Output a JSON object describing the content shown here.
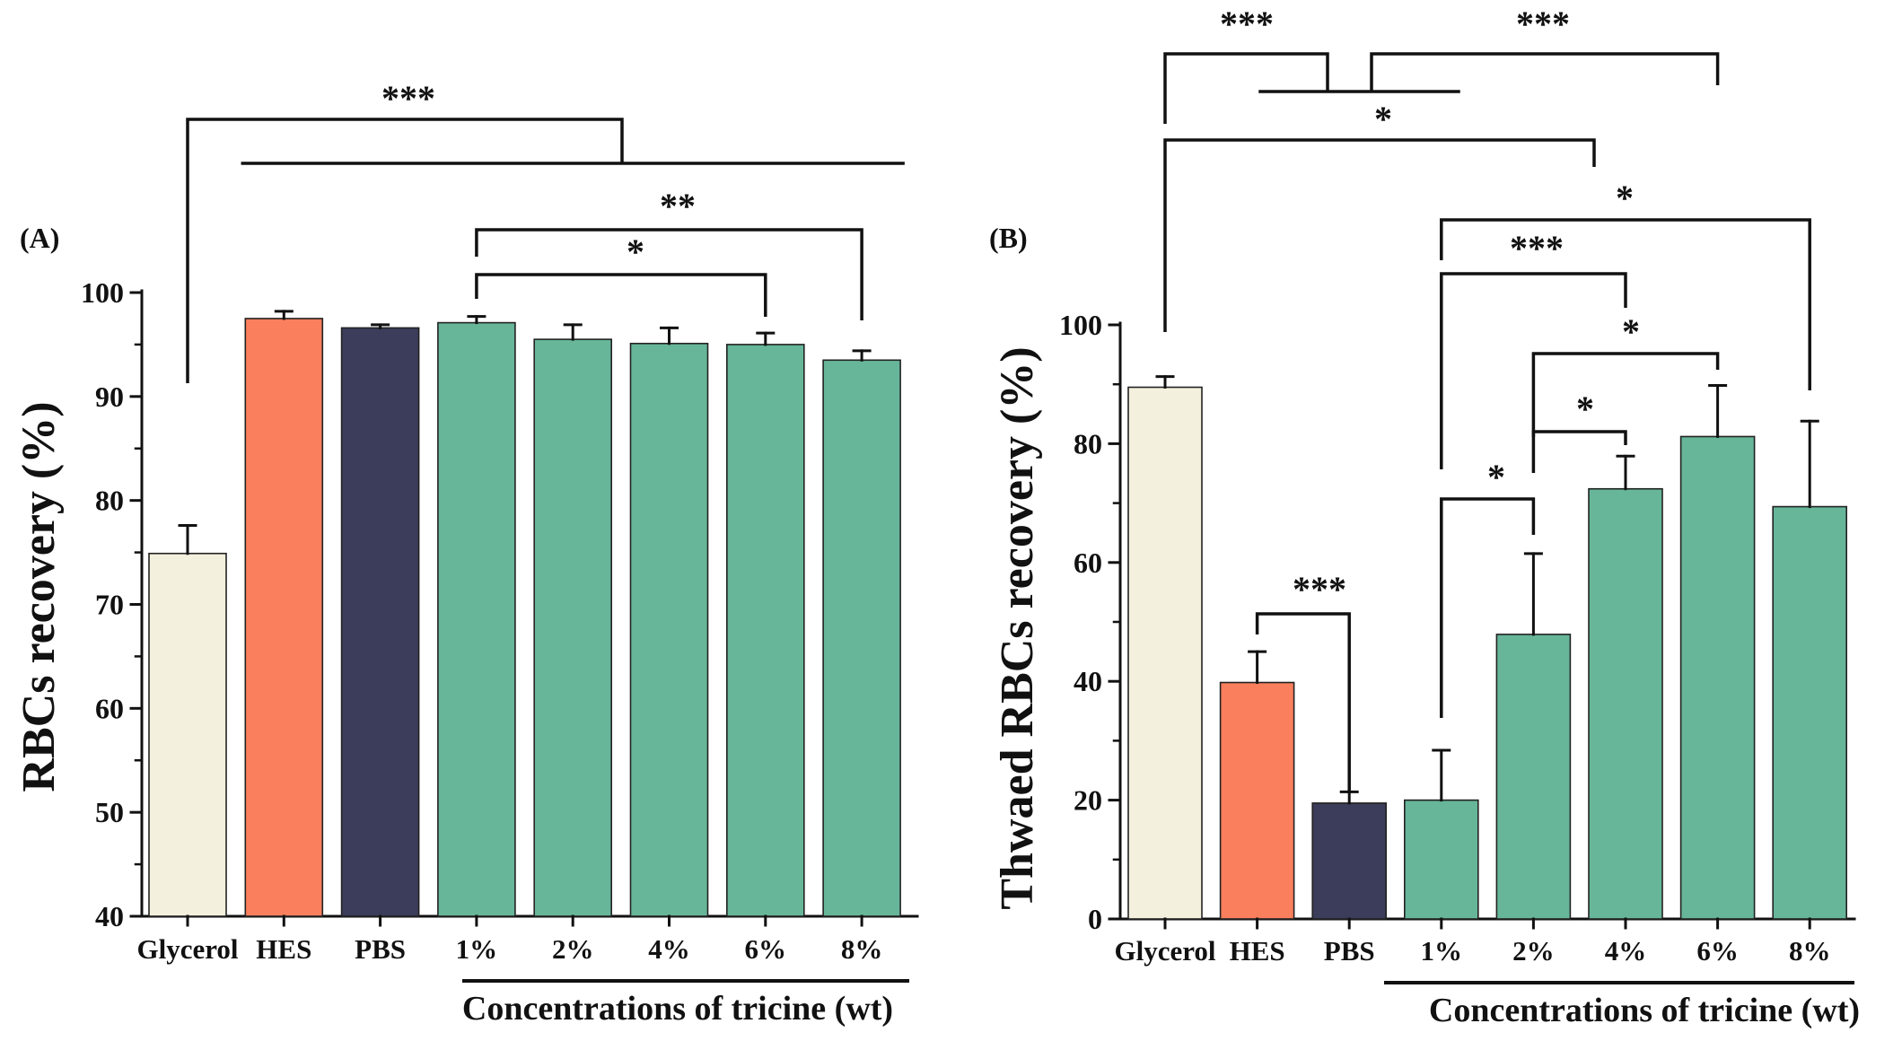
{
  "figure_title": "",
  "chart_data": [
    {
      "type": "bar",
      "panel_label": "(A)",
      "categories": [
        "Glycerol",
        "HES",
        "PBS",
        "1%",
        "2%",
        "4%",
        "6%",
        "8%"
      ],
      "values": [
        74.9,
        97.5,
        96.6,
        97.1,
        95.5,
        95.1,
        95.0,
        93.5
      ],
      "errors": [
        2.7,
        0.7,
        0.3,
        0.6,
        1.4,
        1.5,
        1.1,
        0.9
      ],
      "colors": [
        "#f3f0dd",
        "#fa7f5d",
        "#3b3d5a",
        "#67b69a",
        "#67b69a",
        "#67b69a",
        "#67b69a",
        "#67b69a"
      ],
      "ylabel": "RBCs recovery (%)",
      "xlabel": "Concentrations of tricine (wt)",
      "ylim": [
        40,
        100
      ],
      "yticks": [
        40,
        50,
        60,
        70,
        80,
        90,
        100
      ],
      "yticks_text": [
        "40",
        "50",
        "60",
        "70",
        "80",
        "90",
        "100"
      ],
      "grid": false,
      "significance": [
        {
          "from": 0,
          "to_range": [
            1,
            7
          ],
          "label": "***"
        },
        {
          "from": 3,
          "to": 7,
          "label": "**"
        },
        {
          "from": 3,
          "to": 6,
          "label": "*"
        }
      ]
    },
    {
      "type": "bar",
      "panel_label": "(B)",
      "categories": [
        "Glycerol",
        "HES",
        "PBS",
        "1%",
        "2%",
        "4%",
        "6%",
        "8%"
      ],
      "values": [
        89.5,
        39.8,
        19.5,
        20.0,
        47.9,
        72.4,
        81.2,
        69.4
      ],
      "errors": [
        1.8,
        5.2,
        1.9,
        8.4,
        13.6,
        5.5,
        8.6,
        14.4
      ],
      "colors": [
        "#f3f0dd",
        "#fa7f5d",
        "#3b3d5a",
        "#67b69a",
        "#67b69a",
        "#67b69a",
        "#67b69a",
        "#67b69a"
      ],
      "ylabel": "Thwaed RBCs recovery (%)",
      "xlabel": "Concentrations of tricine (wt)",
      "ylim": [
        0,
        100
      ],
      "yticks": [
        0,
        20,
        40,
        60,
        80,
        100
      ],
      "yticks_text": [
        "0",
        "20",
        "40",
        "60",
        "80",
        "100"
      ],
      "grid": false,
      "significance": [
        {
          "from": 0,
          "to_range": [
            1,
            3
          ],
          "label": "***"
        },
        {
          "from_range": [
            1,
            3
          ],
          "to": 6,
          "label": "***"
        },
        {
          "from": 0,
          "to": 5,
          "label": "*"
        },
        {
          "from": 3,
          "to": 7,
          "label": "*"
        },
        {
          "from": 3,
          "to": 5,
          "label": "***"
        },
        {
          "from": 4,
          "to": 6,
          "label": "*"
        },
        {
          "from": 4,
          "to": 5,
          "label": "*"
        },
        {
          "from": 3,
          "to": 4,
          "label": "*"
        },
        {
          "from": 1,
          "to": 2,
          "label": "***"
        }
      ]
    }
  ]
}
